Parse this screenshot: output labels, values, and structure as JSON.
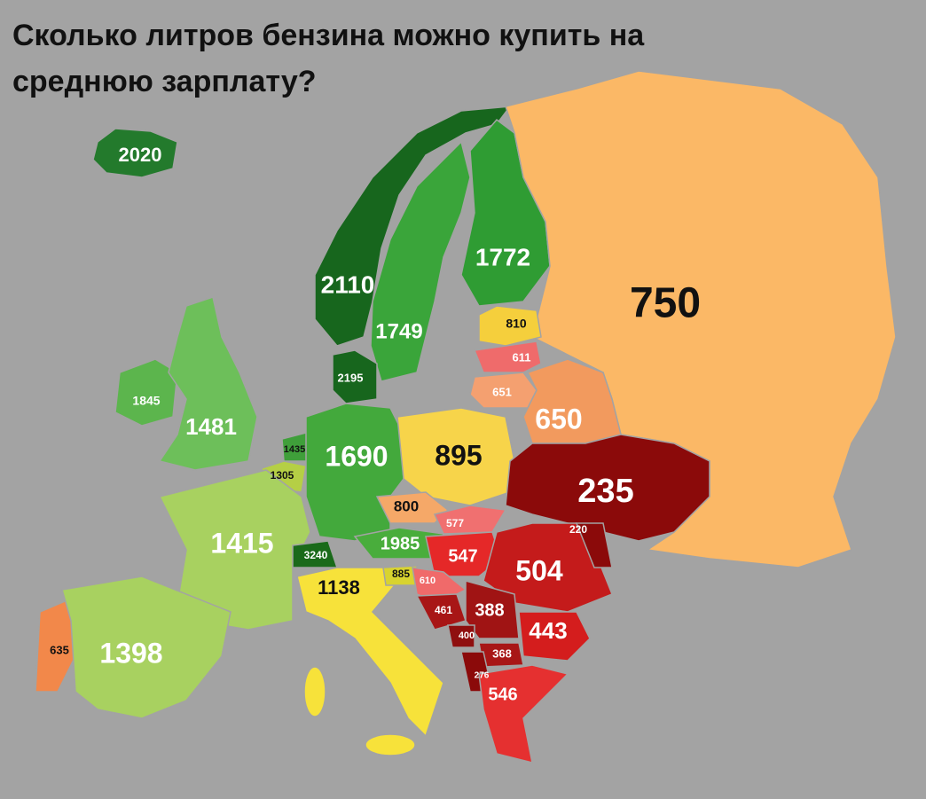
{
  "title": [
    "Сколько литров бензина можно купить на",
    "среднюю зарплату?"
  ],
  "regions": [
    {
      "value": 2020,
      "color": "#237a2c"
    },
    {
      "value": 2110,
      "color": "#17661d"
    },
    {
      "value": 1749,
      "color": "#3aa53a"
    },
    {
      "value": 1772,
      "color": "#2f9c33"
    },
    {
      "value": 750,
      "color": "#fbb866"
    },
    {
      "value": 810,
      "color": "#f5cf3c"
    },
    {
      "value": 611,
      "color": "#ef6b6b"
    },
    {
      "value": 651,
      "color": "#f4a070"
    },
    {
      "value": 650,
      "color": "#f29a5e"
    },
    {
      "value": 1845,
      "color": "#5cb54d"
    },
    {
      "value": 1481,
      "color": "#6dbf5a"
    },
    {
      "value": 2195,
      "color": "#17661d"
    },
    {
      "value": 1435,
      "color": "#3f9f3a"
    },
    {
      "value": 1305,
      "color": "#b5cf45"
    },
    {
      "value": 1690,
      "color": "#43a93c"
    },
    {
      "value": 895,
      "color": "#f7d44a"
    },
    {
      "value": 235,
      "color": "#8b0a0a"
    },
    {
      "value": 800,
      "color": "#f5a868"
    },
    {
      "value": 577,
      "color": "#f07070"
    },
    {
      "value": 1415,
      "color": "#a8d160"
    },
    {
      "value": 1985,
      "color": "#49ad3c"
    },
    {
      "value": 3240,
      "color": "#1a6a1a"
    },
    {
      "value": 547,
      "color": "#e52828"
    },
    {
      "value": 504,
      "color": "#c41b1b"
    },
    {
      "value": 220,
      "color": "#8b0a0a"
    },
    {
      "value": 1138,
      "color": "#f7e23a"
    },
    {
      "value": 885,
      "color": "#d8d32f"
    },
    {
      "value": 610,
      "color": "#f06a6a"
    },
    {
      "value": 461,
      "color": "#a81616"
    },
    {
      "value": 388,
      "color": "#a01414"
    },
    {
      "value": 443,
      "color": "#d41d1d"
    },
    {
      "value": 400,
      "color": "#8f0f0f"
    },
    {
      "value": 368,
      "color": "#a81616"
    },
    {
      "value": 276,
      "color": "#8b0a0a"
    },
    {
      "value": 546,
      "color": "#e53030"
    },
    {
      "value": 635,
      "color": "#f2884a"
    },
    {
      "value": 1398,
      "color": "#a8d160"
    }
  ]
}
